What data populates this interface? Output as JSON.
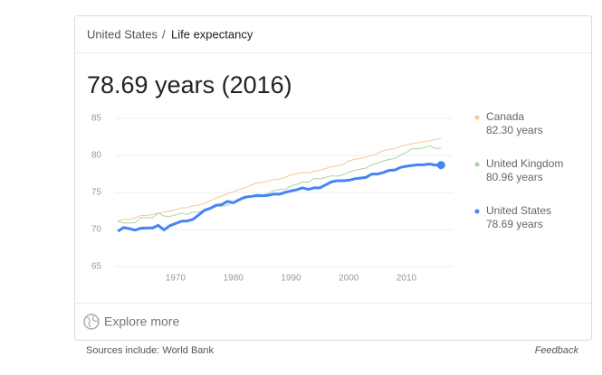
{
  "breadcrumb": {
    "country": "United States",
    "separator": "/",
    "topic": "Life expectancy"
  },
  "headline": "78.69 years (2016)",
  "chart_data": {
    "type": "line",
    "x": [
      1960,
      1961,
      1962,
      1963,
      1964,
      1965,
      1966,
      1967,
      1968,
      1969,
      1970,
      1971,
      1972,
      1973,
      1974,
      1975,
      1976,
      1977,
      1978,
      1979,
      1980,
      1981,
      1982,
      1983,
      1984,
      1985,
      1986,
      1987,
      1988,
      1989,
      1990,
      1991,
      1992,
      1993,
      1994,
      1995,
      1996,
      1997,
      1998,
      1999,
      2000,
      2001,
      2002,
      2003,
      2004,
      2005,
      2006,
      2007,
      2008,
      2009,
      2010,
      2011,
      2012,
      2013,
      2014,
      2015,
      2016
    ],
    "series": [
      {
        "name": "Canada",
        "latest_label": "82.30 years",
        "color": "#f7c79a",
        "width": 1,
        "values": [
          71.13,
          71.35,
          71.37,
          71.55,
          71.89,
          71.91,
          72.03,
          72.18,
          72.35,
          72.49,
          72.7,
          72.92,
          72.94,
          73.18,
          73.29,
          73.52,
          73.9,
          74.25,
          74.5,
          74.83,
          75.08,
          75.39,
          75.62,
          75.96,
          76.28,
          76.36,
          76.53,
          76.73,
          76.8,
          77.04,
          77.38,
          77.55,
          77.72,
          77.66,
          77.87,
          77.98,
          78.23,
          78.48,
          78.58,
          78.77,
          79.24,
          79.47,
          79.59,
          79.78,
          80.0,
          80.29,
          80.64,
          80.8,
          80.94,
          81.22,
          81.4,
          81.57,
          81.7,
          81.85,
          81.96,
          82.14,
          82.3
        ]
      },
      {
        "name": "United Kingdom",
        "latest_label": "80.96 years",
        "color": "#a9d6a2",
        "width": 1,
        "values": [
          71.13,
          70.88,
          70.88,
          70.93,
          71.62,
          71.62,
          71.57,
          72.22,
          71.82,
          71.77,
          71.97,
          72.22,
          72.02,
          72.37,
          72.32,
          72.67,
          72.77,
          73.22,
          73.12,
          73.27,
          73.68,
          74.03,
          74.18,
          74.43,
          74.79,
          74.69,
          74.84,
          75.24,
          75.39,
          75.44,
          75.88,
          76.08,
          76.43,
          76.39,
          76.89,
          76.84,
          77.04,
          77.24,
          77.19,
          77.39,
          77.74,
          77.99,
          78.14,
          78.29,
          78.74,
          78.94,
          79.25,
          79.45,
          79.6,
          80.05,
          80.4,
          80.95,
          80.9,
          81.0,
          81.3,
          80.96,
          80.96
        ]
      },
      {
        "name": "United States",
        "latest_label": "78.69 years",
        "color": "#4285f4",
        "width": 3,
        "end_dot": true,
        "values": [
          69.77,
          70.27,
          70.12,
          69.92,
          70.17,
          70.21,
          70.21,
          70.56,
          69.95,
          70.51,
          70.81,
          71.11,
          71.16,
          71.36,
          71.96,
          72.6,
          72.86,
          73.26,
          73.36,
          73.8,
          73.61,
          74.01,
          74.36,
          74.46,
          74.56,
          74.56,
          74.61,
          74.77,
          74.77,
          75.02,
          75.21,
          75.37,
          75.62,
          75.42,
          75.62,
          75.62,
          76.03,
          76.43,
          76.58,
          76.58,
          76.64,
          76.84,
          76.94,
          77.04,
          77.49,
          77.49,
          77.69,
          77.99,
          78.04,
          78.39,
          78.54,
          78.64,
          78.74,
          78.74,
          78.84,
          78.69,
          78.69
        ]
      }
    ],
    "xlim": [
      1959.5,
      2018
    ],
    "xticks": [
      1970,
      1980,
      1990,
      2000,
      2010
    ],
    "ylim": [
      65,
      85
    ],
    "yticks": [
      65,
      70,
      75,
      80,
      85
    ],
    "grid": true
  },
  "explore": "Explore more",
  "sources": "Sources include: World Bank",
  "feedback": "Feedback"
}
